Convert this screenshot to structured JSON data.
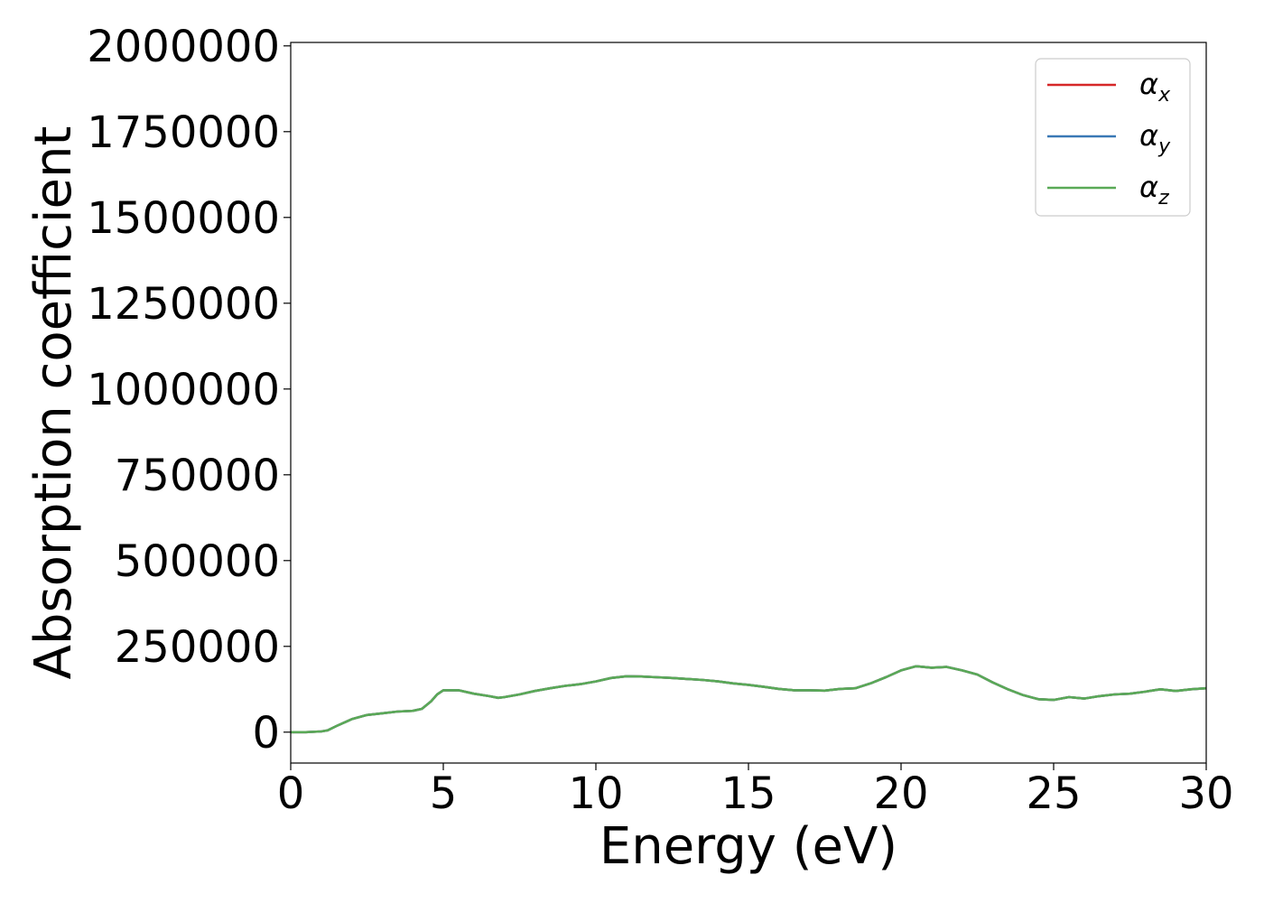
{
  "colors": {
    "alpha_x": "#d62728",
    "alpha_y": "#3a78b5",
    "alpha_z": "#5aa957"
  },
  "chart_data": {
    "type": "line",
    "title": "",
    "xlabel": "Energy (eV)",
    "ylabel": "Absorption coefficient",
    "xlim": [
      0,
      30
    ],
    "ylim": [
      -90000,
      2010000
    ],
    "xticks": [
      0,
      5,
      10,
      15,
      20,
      25,
      30
    ],
    "xtick_labels": [
      "0",
      "5",
      "10",
      "15",
      "20",
      "25",
      "30"
    ],
    "yticks": [
      0,
      250000,
      500000,
      750000,
      1000000,
      1250000,
      1500000,
      1750000,
      2000000
    ],
    "ytick_labels": [
      "0",
      "250000",
      "500000",
      "750000",
      "1000000",
      "1250000",
      "1500000",
      "1750000",
      "2000000"
    ],
    "grid": false,
    "legend_position": "top-right",
    "x": [
      0,
      0.5,
      1,
      1.2,
      1.5,
      2,
      2.5,
      3,
      3.5,
      4,
      4.3,
      4.6,
      4.8,
      5,
      5.5,
      6,
      6.5,
      6.8,
      7,
      7.5,
      8,
      8.5,
      9,
      9.5,
      10,
      10.5,
      11,
      11.5,
      12,
      12.5,
      13,
      13.5,
      14,
      14.5,
      15,
      15.5,
      16,
      16.5,
      17,
      17.5,
      18,
      18.5,
      19,
      19.5,
      20,
      20.5,
      21,
      21.5,
      22,
      22.5,
      23,
      23.5,
      24,
      24.5,
      25,
      25.5,
      26,
      26.5,
      27,
      27.5,
      28,
      28.5,
      29,
      29.5,
      30
    ],
    "series": [
      {
        "name": "α_x",
        "legend_symbol": "α",
        "legend_sub": "x",
        "color_key": "alpha_x",
        "values": [
          0,
          0,
          2000,
          5000,
          18000,
          38000,
          50000,
          55000,
          60000,
          62000,
          68000,
          90000,
          110000,
          122000,
          122000,
          112000,
          105000,
          100000,
          102000,
          110000,
          120000,
          128000,
          135000,
          140000,
          148000,
          158000,
          163000,
          162000,
          160000,
          158000,
          155000,
          152000,
          148000,
          142000,
          138000,
          132000,
          126000,
          122000,
          122000,
          121000,
          126000,
          128000,
          142000,
          160000,
          180000,
          192000,
          188000,
          190000,
          180000,
          168000,
          145000,
          125000,
          108000,
          96000,
          94000,
          102000,
          98000,
          105000,
          110000,
          112000,
          118000,
          125000,
          120000,
          125000,
          128000
        ]
      },
      {
        "name": "α_y",
        "legend_symbol": "α",
        "legend_sub": "y",
        "color_key": "alpha_y",
        "values": [
          0,
          0,
          2000,
          5000,
          18000,
          38000,
          50000,
          55000,
          60000,
          62000,
          68000,
          90000,
          110000,
          122000,
          122000,
          112000,
          105000,
          100000,
          102000,
          110000,
          120000,
          128000,
          135000,
          140000,
          148000,
          158000,
          163000,
          162000,
          160000,
          158000,
          155000,
          152000,
          148000,
          142000,
          138000,
          132000,
          126000,
          122000,
          122000,
          121000,
          126000,
          128000,
          142000,
          160000,
          180000,
          192000,
          188000,
          190000,
          180000,
          168000,
          145000,
          125000,
          108000,
          96000,
          94000,
          102000,
          98000,
          105000,
          110000,
          112000,
          118000,
          125000,
          120000,
          125000,
          128000
        ]
      },
      {
        "name": "α_z",
        "legend_symbol": "α",
        "legend_sub": "z",
        "color_key": "alpha_z",
        "values": [
          0,
          0,
          2000,
          5000,
          18000,
          38000,
          50000,
          55000,
          60000,
          62000,
          68000,
          90000,
          110000,
          122000,
          122000,
          112000,
          105000,
          100000,
          102000,
          110000,
          120000,
          128000,
          135000,
          140000,
          148000,
          158000,
          163000,
          162000,
          160000,
          158000,
          155000,
          152000,
          148000,
          142000,
          138000,
          132000,
          126000,
          122000,
          122000,
          121000,
          126000,
          128000,
          142000,
          160000,
          180000,
          192000,
          188000,
          190000,
          180000,
          168000,
          145000,
          125000,
          108000,
          96000,
          94000,
          102000,
          98000,
          105000,
          110000,
          112000,
          118000,
          125000,
          120000,
          125000,
          128000
        ]
      }
    ]
  }
}
